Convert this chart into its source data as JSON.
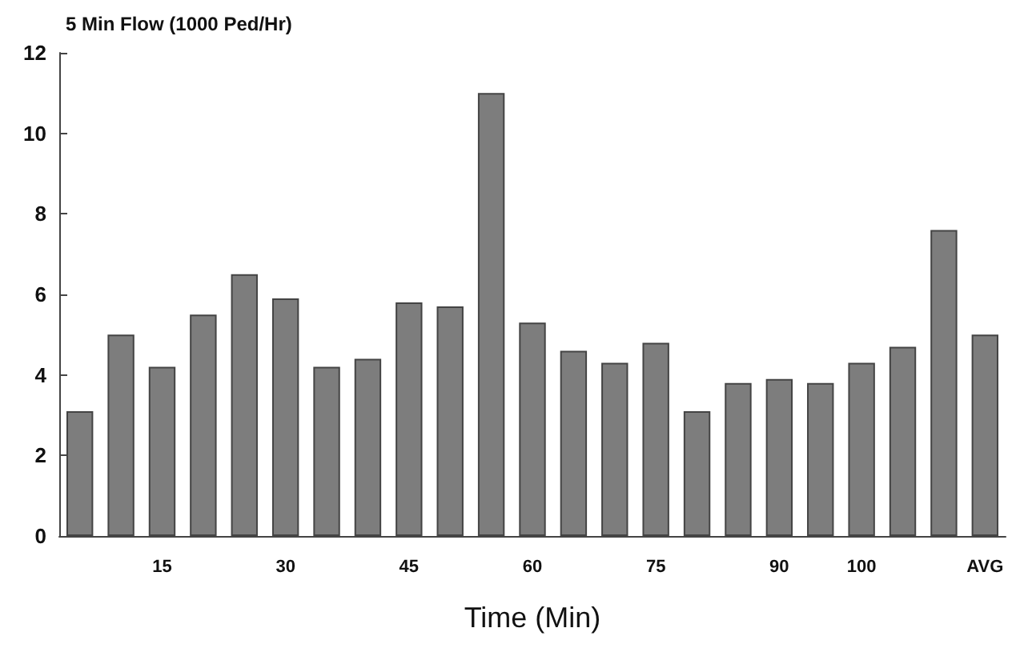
{
  "chart_data": {
    "type": "bar",
    "ylabel": "5 Min Flow (1000 Ped/Hr)",
    "xlabel": "Time (Min)",
    "categories": [
      null,
      null,
      "15",
      null,
      null,
      "30",
      null,
      null,
      "45",
      null,
      null,
      "60",
      null,
      null,
      "75",
      null,
      null,
      "90",
      null,
      "100",
      null,
      null,
      "AVG"
    ],
    "values": [
      3.1,
      5.0,
      4.2,
      5.5,
      6.5,
      5.9,
      4.2,
      4.4,
      5.8,
      5.7,
      11.0,
      5.3,
      4.6,
      4.3,
      4.8,
      3.1,
      3.8,
      3.9,
      3.8,
      4.3,
      4.7,
      7.6,
      5.0
    ],
    "color": "#7d7d7d",
    "ylim": [
      0,
      12
    ],
    "yticks": [
      0,
      2,
      4,
      6,
      8,
      10,
      12
    ],
    "grid": false
  }
}
